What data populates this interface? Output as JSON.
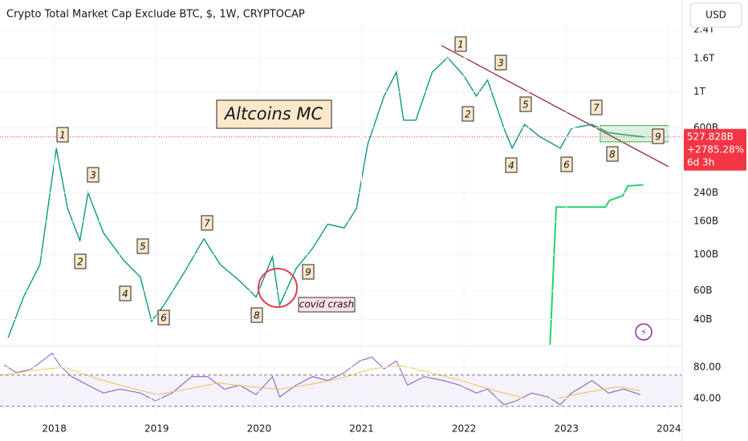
{
  "header": {
    "currency": "USD"
  },
  "chart_data": [
    {
      "type": "line",
      "title": "Crypto Total Market Cap Exclude BTC, $, 1W, CRYPTOCAP",
      "log_scale": true,
      "color": "#089981",
      "x": [
        2017.55,
        2017.7,
        2017.86,
        2018.02,
        2018.13,
        2018.25,
        2018.33,
        2018.48,
        2018.68,
        2018.84,
        2018.95,
        2019.07,
        2019.27,
        2019.46,
        2019.62,
        2019.81,
        2019.97,
        2020.13,
        2020.2,
        2020.36,
        2020.52,
        2020.67,
        2020.83,
        2020.95,
        2021.06,
        2021.22,
        2021.34,
        2021.41,
        2021.53,
        2021.69,
        2021.84,
        2022.0,
        2022.12,
        2022.23,
        2022.39,
        2022.47,
        2022.59,
        2022.74,
        2022.94,
        2023.05,
        2023.25,
        2023.41,
        2023.56,
        2023.76
      ],
      "values": [
        31000000000.0,
        55000000000.0,
        87000000000.0,
        450000000000.0,
        192000000000.0,
        122000000000.0,
        240000000000.0,
        136000000000.0,
        92000000000.0,
        73000000000.0,
        39000000000.0,
        49000000000.0,
        78000000000.0,
        125000000000.0,
        87000000000.0,
        69000000000.0,
        55000000000.0,
        97000000000.0,
        49000000000.0,
        82000000000.0,
        109000000000.0,
        154000000000.0,
        146000000000.0,
        192000000000.0,
        476000000000.0,
        940000000000.0,
        1320000000000.0,
        668000000000.0,
        668000000000.0,
        1320000000000.0,
        1620000000000.0,
        1250000000000.0,
        940000000000.0,
        1180000000000.0,
        596000000000.0,
        450000000000.0,
        630000000000.0,
        530000000000.0,
        450000000000.0,
        596000000000.0,
        630000000000.0,
        560000000000.0,
        545000000000.0,
        527828000000.0
      ],
      "indicator": {
        "color": "#22d36a",
        "x": [
          2022.84,
          2022.9,
          2023.38,
          2023.42,
          2023.55,
          2023.6,
          2023.75
        ],
        "values": [
          28000000000.0,
          196000000000.0,
          196000000000.0,
          215000000000.0,
          230000000000.0,
          264000000000.0,
          268000000000.0
        ]
      },
      "trendline": {
        "color": "#8b1a2b",
        "x": [
          2021.78,
          2024.0
        ],
        "values": [
          1920000000000.0,
          346000000000.0
        ]
      },
      "range_box": {
        "x": [
          2023.33,
          2024.0
        ],
        "values": [
          620000000000.0,
          492000000000.0
        ]
      },
      "price_tag": {
        "value": 527828000000.0,
        "label": "527.828B",
        "change_label": "+2785.28%",
        "countdown": "6d 3h"
      },
      "title_box": "Altcoins MC",
      "note": "covid crash",
      "wave_labels": [
        "1",
        "3",
        "2",
        "5",
        "4",
        "6",
        "7",
        "8",
        "9",
        "1",
        "3",
        "2",
        "5",
        "4",
        "6",
        "7",
        "8",
        "9"
      ],
      "xlim": [
        2017.47,
        2024.13
      ],
      "xticks": [
        2018,
        2019,
        2020,
        2021,
        2022,
        2023,
        2024
      ],
      "ylim": [
        28000000000.0,
        2600000000000.0
      ],
      "yticks": [
        {
          "value": 2400000000000.0,
          "label": "2.4T"
        },
        {
          "value": 1600000000000.0,
          "label": "1.6T"
        },
        {
          "value": 1000000000000.0,
          "label": "1T"
        },
        {
          "value": 600000000000.0,
          "label": "600B"
        },
        {
          "value": 240000000000.0,
          "label": "240B"
        },
        {
          "value": 160000000000.0,
          "label": "160B"
        },
        {
          "value": 100000000000.0,
          "label": "100B"
        },
        {
          "value": 60000000000.0,
          "label": "60B"
        },
        {
          "value": 40000000000.0,
          "label": "40B"
        }
      ]
    },
    {
      "type": "line",
      "color": "#7e57c2",
      "x": [
        2017.51,
        2017.63,
        2017.78,
        2017.98,
        2018.05,
        2018.17,
        2018.33,
        2018.48,
        2018.64,
        2018.84,
        2018.99,
        2019.15,
        2019.34,
        2019.5,
        2019.66,
        2019.81,
        2019.97,
        2020.13,
        2020.2,
        2020.36,
        2020.52,
        2020.67,
        2020.83,
        2020.98,
        2021.1,
        2021.22,
        2021.34,
        2021.45,
        2021.61,
        2021.8,
        2021.96,
        2022.12,
        2022.23,
        2022.39,
        2022.51,
        2022.66,
        2022.82,
        2022.94,
        2023.05,
        2023.25,
        2023.41,
        2023.56,
        2023.72
      ],
      "values": [
        83,
        73,
        78,
        98,
        83,
        68,
        57,
        47,
        52,
        47,
        37,
        47,
        68,
        68,
        52,
        57,
        45,
        68,
        42,
        57,
        68,
        63,
        73,
        88,
        93,
        78,
        88,
        57,
        68,
        63,
        57,
        47,
        52,
        32,
        37,
        47,
        42,
        32,
        47,
        63,
        47,
        52,
        45
      ],
      "ma": {
        "color": "#f2c94c",
        "x": [
          2017.51,
          2017.8,
          2018.1,
          2018.4,
          2018.7,
          2019.0,
          2019.3,
          2019.6,
          2019.9,
          2020.2,
          2020.5,
          2020.8,
          2021.1,
          2021.4,
          2021.7,
          2022.0,
          2022.3,
          2022.6,
          2022.9,
          2023.2,
          2023.5,
          2023.72
        ],
        "values": [
          70,
          76,
          80,
          66,
          55,
          45,
          52,
          60,
          55,
          52,
          58,
          66,
          78,
          82,
          72,
          62,
          50,
          40,
          40,
          48,
          55,
          50
        ]
      },
      "band": [
        30,
        70
      ],
      "ylim": [
        16.4,
        106.7
      ],
      "yticks": [
        {
          "value": 80,
          "label": "80.00"
        },
        {
          "value": 40,
          "label": "40.00"
        }
      ]
    }
  ]
}
